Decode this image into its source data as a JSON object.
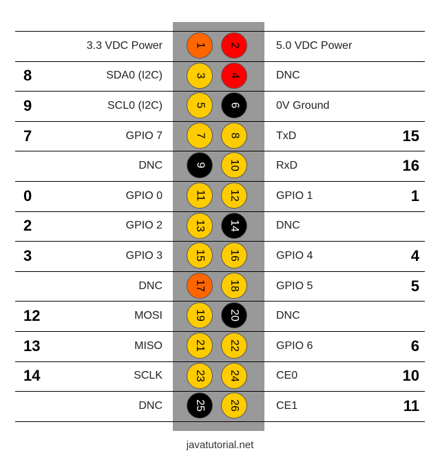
{
  "colors": {
    "header_bg": "#999999",
    "power_orange": "#ff6600",
    "power_red": "#ff0000",
    "gpio_yellow": "#ffcc00",
    "ground_black": "#000000"
  },
  "rows": [
    {
      "wpi_left": "",
      "name_left": "3.3 VDC Power",
      "pin_left": "1",
      "pin_left_color": "power_orange",
      "pin_right": "2",
      "pin_right_color": "power_red",
      "name_right": "5.0 VDC Power",
      "wpi_right": ""
    },
    {
      "wpi_left": "8",
      "name_left": "SDA0 (I2C)",
      "pin_left": "3",
      "pin_left_color": "gpio_yellow",
      "pin_right": "4",
      "pin_right_color": "power_red",
      "name_right": "DNC",
      "wpi_right": ""
    },
    {
      "wpi_left": "9",
      "name_left": "SCL0 (I2C)",
      "pin_left": "5",
      "pin_left_color": "gpio_yellow",
      "pin_right": "6",
      "pin_right_color": "ground_black",
      "name_right": "0V Ground",
      "wpi_right": ""
    },
    {
      "wpi_left": "7",
      "name_left": "GPIO 7",
      "pin_left": "7",
      "pin_left_color": "gpio_yellow",
      "pin_right": "8",
      "pin_right_color": "gpio_yellow",
      "name_right": "TxD",
      "wpi_right": "15"
    },
    {
      "wpi_left": "",
      "name_left": "DNC",
      "pin_left": "9",
      "pin_left_color": "ground_black",
      "pin_right": "10",
      "pin_right_color": "gpio_yellow",
      "name_right": "RxD",
      "wpi_right": "16"
    },
    {
      "wpi_left": "0",
      "name_left": "GPIO 0",
      "pin_left": "11",
      "pin_left_color": "gpio_yellow",
      "pin_right": "12",
      "pin_right_color": "gpio_yellow",
      "name_right": "GPIO 1",
      "wpi_right": "1"
    },
    {
      "wpi_left": "2",
      "name_left": "GPIO 2",
      "pin_left": "13",
      "pin_left_color": "gpio_yellow",
      "pin_right": "14",
      "pin_right_color": "ground_black",
      "name_right": "DNC",
      "wpi_right": ""
    },
    {
      "wpi_left": "3",
      "name_left": "GPIO 3",
      "pin_left": "15",
      "pin_left_color": "gpio_yellow",
      "pin_right": "16",
      "pin_right_color": "gpio_yellow",
      "name_right": "GPIO 4",
      "wpi_right": "4"
    },
    {
      "wpi_left": "",
      "name_left": "DNC",
      "pin_left": "17",
      "pin_left_color": "power_orange",
      "pin_right": "18",
      "pin_right_color": "gpio_yellow",
      "name_right": "GPIO 5",
      "wpi_right": "5"
    },
    {
      "wpi_left": "12",
      "name_left": "MOSI",
      "pin_left": "19",
      "pin_left_color": "gpio_yellow",
      "pin_right": "20",
      "pin_right_color": "ground_black",
      "name_right": "DNC",
      "wpi_right": ""
    },
    {
      "wpi_left": "13",
      "name_left": "MISO",
      "pin_left": "21",
      "pin_left_color": "gpio_yellow",
      "pin_right": "22",
      "pin_right_color": "gpio_yellow",
      "name_right": "GPIO 6",
      "wpi_right": "6"
    },
    {
      "wpi_left": "14",
      "name_left": "SCLK",
      "pin_left": "23",
      "pin_left_color": "gpio_yellow",
      "pin_right": "24",
      "pin_right_color": "gpio_yellow",
      "name_right": "CE0",
      "wpi_right": "10"
    },
    {
      "wpi_left": "",
      "name_left": "DNC",
      "pin_left": "25",
      "pin_left_color": "ground_black",
      "pin_right": "26",
      "pin_right_color": "gpio_yellow",
      "name_right": "CE1",
      "wpi_right": "11"
    }
  ],
  "footer": {
    "text": "javatutorial.net"
  }
}
